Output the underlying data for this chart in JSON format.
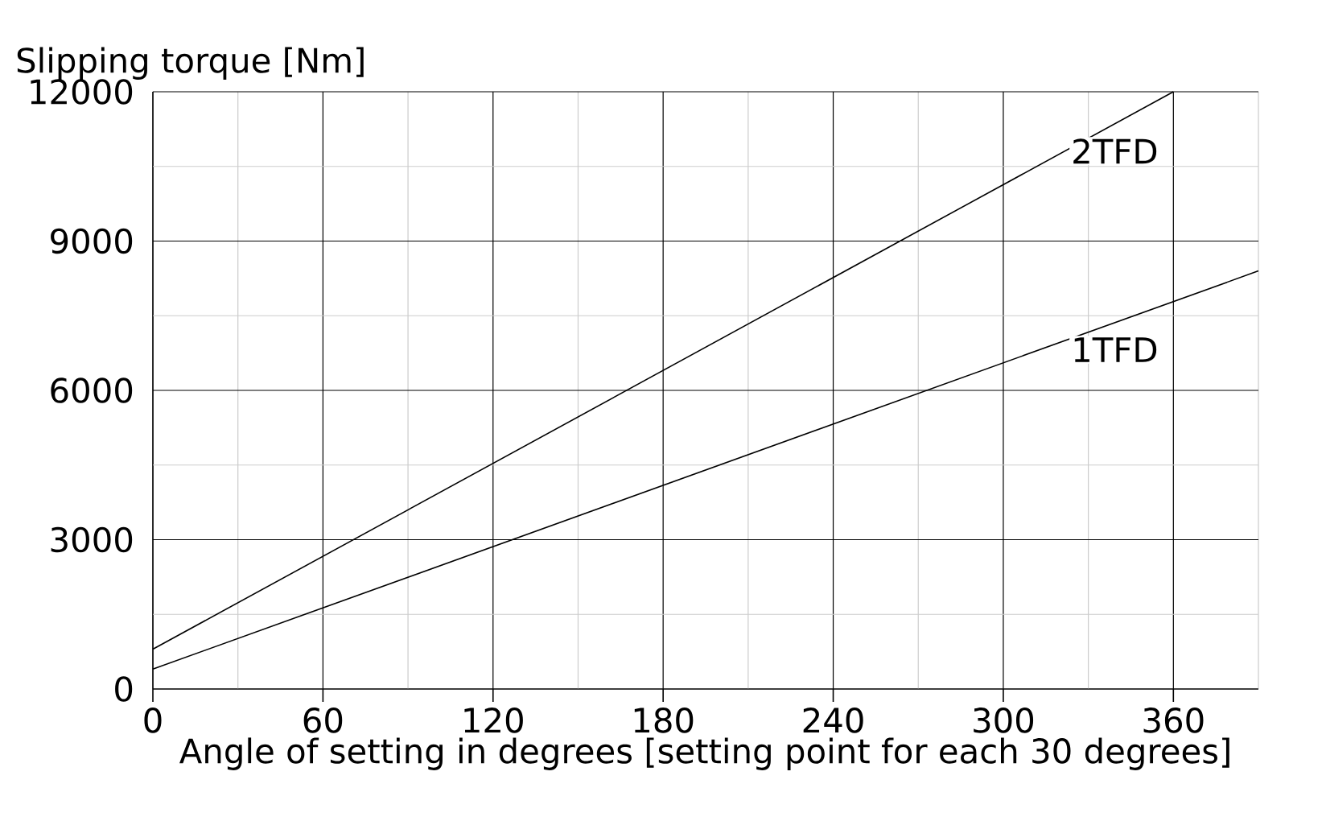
{
  "chart_data": {
    "type": "line",
    "xlabel": "Angle of setting in degrees [setting point for each 30 degrees]",
    "ylabel": "Slipping torque [Nm]",
    "xlim": [
      0,
      390
    ],
    "ylim": [
      0,
      12000
    ],
    "xticks": [
      0,
      {
        "value": 30,
        "label": null
      },
      60,
      {
        "value": 90,
        "label": null
      },
      120,
      {
        "value": 150,
        "label": null
      },
      180,
      {
        "value": 210,
        "label": null
      },
      240,
      {
        "value": 270,
        "label": null
      },
      300,
      {
        "value": 330,
        "label": null
      },
      360
    ],
    "yticks": [
      0,
      {
        "value": 1500,
        "label": null
      },
      3000,
      {
        "value": 4500,
        "label": null
      },
      6000,
      {
        "value": 7500,
        "label": null
      },
      9000,
      {
        "value": 10500,
        "label": null
      },
      12000
    ],
    "grid": true,
    "marker": "none",
    "line_style": "solid",
    "series": [
      {
        "name": "2TFD",
        "color": "#000000",
        "x": [
          0,
          360
        ],
        "values": [
          800,
          12000
        ]
      },
      {
        "name": "1TFD",
        "color": "#000000",
        "x": [
          0,
          390
        ],
        "values": [
          400,
          8400
        ]
      }
    ]
  }
}
